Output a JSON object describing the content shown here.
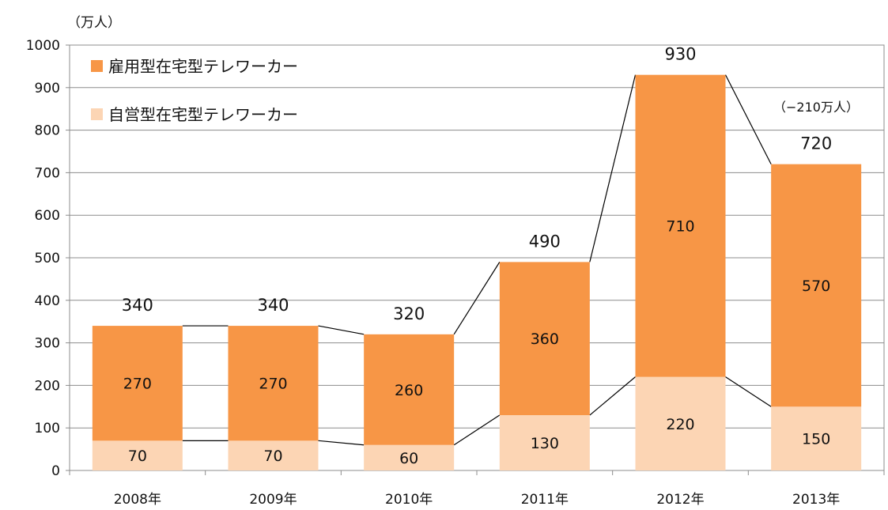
{
  "chart_data": {
    "type": "bar",
    "stacked": true,
    "unit_label": "（万人）",
    "categories": [
      "2008年",
      "2009年",
      "2010年",
      "2011年",
      "2012年",
      "2013年"
    ],
    "series": [
      {
        "name": "自営型在宅型テレワーカー",
        "values": [
          70,
          70,
          60,
          130,
          220,
          150
        ],
        "color": "#fcd5b4"
      },
      {
        "name": "雇用型在宅型テレワーカー",
        "values": [
          270,
          270,
          260,
          360,
          710,
          570
        ],
        "color": "#f79646"
      }
    ],
    "totals": [
      340,
      340,
      320,
      490,
      930,
      720
    ],
    "ylim": [
      0,
      1000
    ],
    "yticks": [
      0,
      100,
      200,
      300,
      400,
      500,
      600,
      700,
      800,
      900,
      1000
    ],
    "grid": true,
    "legend_position": "top-left",
    "annotation": "（−210万人）"
  }
}
